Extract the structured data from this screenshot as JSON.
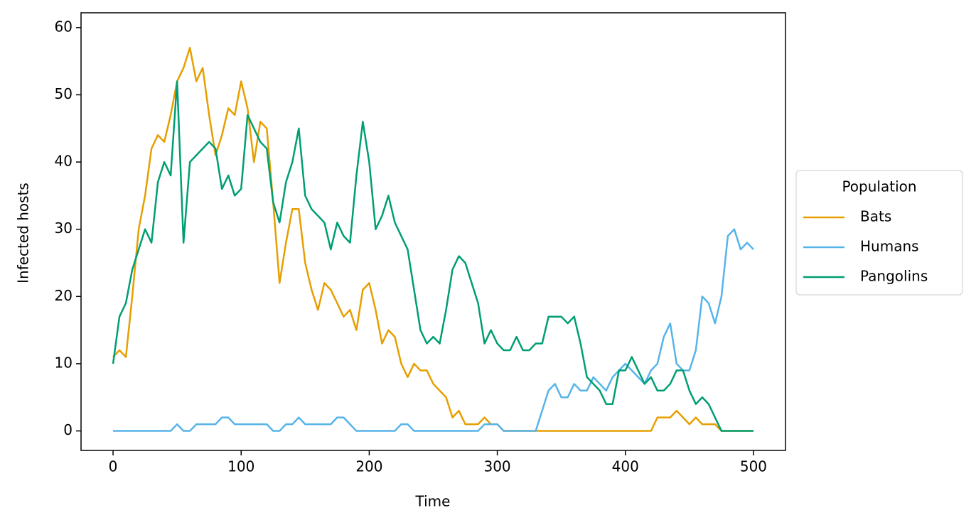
{
  "chart_data": {
    "type": "line",
    "xlabel": "Time",
    "ylabel": "Infected hosts",
    "x": [
      0,
      5,
      10,
      15,
      20,
      25,
      30,
      35,
      40,
      45,
      50,
      55,
      60,
      65,
      70,
      75,
      80,
      85,
      90,
      95,
      100,
      105,
      110,
      115,
      120,
      125,
      130,
      135,
      140,
      145,
      150,
      155,
      160,
      165,
      170,
      175,
      180,
      185,
      190,
      195,
      200,
      205,
      210,
      215,
      220,
      225,
      230,
      235,
      240,
      245,
      250,
      255,
      260,
      265,
      270,
      275,
      280,
      285,
      290,
      295,
      300,
      305,
      310,
      315,
      320,
      325,
      330,
      335,
      340,
      345,
      350,
      355,
      360,
      365,
      370,
      375,
      380,
      385,
      390,
      395,
      400,
      405,
      410,
      415,
      420,
      425,
      430,
      435,
      440,
      445,
      450,
      455,
      460,
      465,
      470,
      475,
      480,
      485,
      490,
      495,
      500
    ],
    "series": [
      {
        "name": "Bats",
        "color": "#e69f00",
        "values": [
          11,
          12,
          11,
          20,
          30,
          35,
          42,
          44,
          43,
          47,
          52,
          54,
          57,
          52,
          54,
          47,
          41,
          44,
          48,
          47,
          52,
          48,
          40,
          46,
          45,
          34,
          22,
          28,
          33,
          33,
          25,
          21,
          18,
          22,
          21,
          19,
          17,
          18,
          15,
          21,
          22,
          18,
          13,
          15,
          14,
          10,
          8,
          10,
          9,
          9,
          7,
          6,
          5,
          2,
          3,
          1,
          1,
          1,
          2,
          1,
          1,
          0,
          0,
          0,
          0,
          0,
          0,
          0,
          0,
          0,
          0,
          0,
          0,
          0,
          0,
          0,
          0,
          0,
          0,
          0,
          0,
          0,
          0,
          0,
          0,
          2,
          2,
          2,
          3,
          2,
          1,
          2,
          1,
          1,
          1,
          0,
          0,
          0,
          0,
          0,
          0
        ]
      },
      {
        "name": "Humans",
        "color": "#56b4e9",
        "values": [
          0,
          0,
          0,
          0,
          0,
          0,
          0,
          0,
          0,
          0,
          1,
          0,
          0,
          1,
          1,
          1,
          1,
          2,
          2,
          1,
          1,
          1,
          1,
          1,
          1,
          0,
          0,
          1,
          1,
          2,
          1,
          1,
          1,
          1,
          1,
          2,
          2,
          1,
          0,
          0,
          0,
          0,
          0,
          0,
          0,
          1,
          1,
          0,
          0,
          0,
          0,
          0,
          0,
          0,
          0,
          0,
          0,
          0,
          1,
          1,
          1,
          0,
          0,
          0,
          0,
          0,
          0,
          3,
          6,
          7,
          5,
          5,
          7,
          6,
          6,
          8,
          7,
          6,
          8,
          9,
          10,
          9,
          8,
          7,
          9,
          10,
          14,
          16,
          10,
          9,
          9,
          12,
          20,
          19,
          16,
          20,
          29,
          30,
          27,
          28,
          27
        ]
      },
      {
        "name": "Pangolins",
        "color": "#009e73",
        "values": [
          10,
          17,
          19,
          24,
          27,
          30,
          28,
          37,
          40,
          38,
          52,
          28,
          40,
          41,
          42,
          43,
          42,
          36,
          38,
          35,
          36,
          47,
          45,
          43,
          42,
          34,
          31,
          37,
          40,
          45,
          35,
          33,
          32,
          31,
          27,
          31,
          29,
          28,
          38,
          46,
          40,
          30,
          32,
          35,
          31,
          29,
          27,
          21,
          15,
          13,
          14,
          13,
          18,
          24,
          26,
          25,
          22,
          19,
          13,
          15,
          13,
          12,
          12,
          14,
          12,
          12,
          13,
          13,
          17,
          17,
          17,
          16,
          17,
          13,
          8,
          7,
          6,
          4,
          4,
          9,
          9,
          11,
          9,
          7,
          8,
          6,
          6,
          7,
          9,
          9,
          6,
          4,
          5,
          4,
          2,
          0,
          0,
          0,
          0,
          0,
          0
        ]
      }
    ],
    "xlim": [
      -25,
      525
    ],
    "xticks": [
      0,
      100,
      200,
      300,
      400,
      500
    ],
    "ylim": [
      -2.9,
      62.2
    ],
    "yticks": [
      0,
      10,
      20,
      30,
      40,
      50,
      60
    ],
    "legend_title": "Population",
    "legend": "outside-right"
  }
}
